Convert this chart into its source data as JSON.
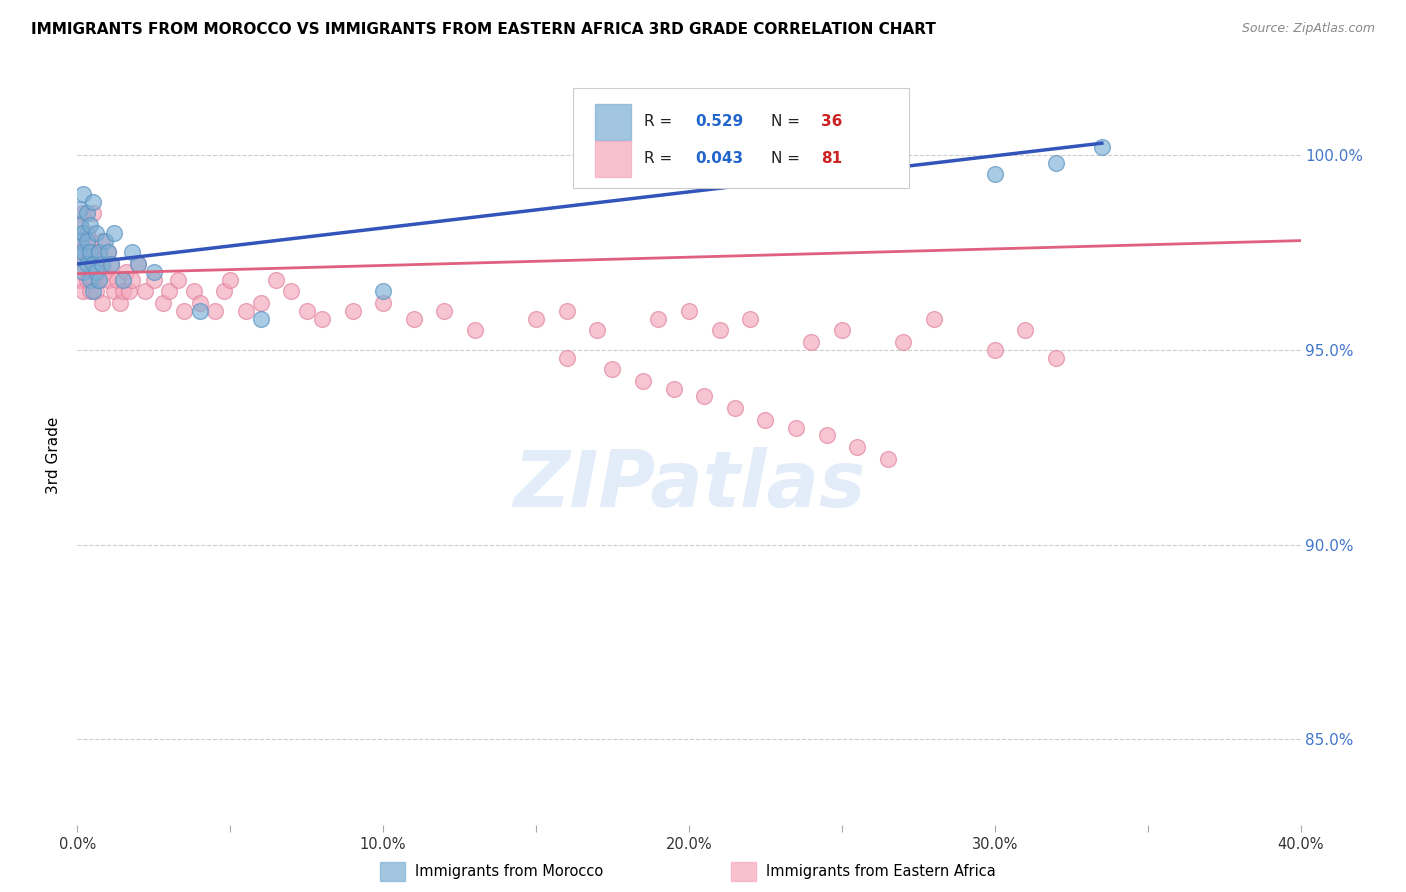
{
  "title": "IMMIGRANTS FROM MOROCCO VS IMMIGRANTS FROM EASTERN AFRICA 3RD GRADE CORRELATION CHART",
  "source": "Source: ZipAtlas.com",
  "ylabel": "3rd Grade",
  "xlim": [
    0.0,
    0.4
  ],
  "ylim": [
    0.828,
    1.018
  ],
  "xtick_labels": [
    "0.0%",
    "",
    "10.0%",
    "",
    "20.0%",
    "",
    "30.0%",
    "",
    "40.0%"
  ],
  "xtick_values": [
    0.0,
    0.05,
    0.1,
    0.15,
    0.2,
    0.25,
    0.3,
    0.35,
    0.4
  ],
  "ytick_labels": [
    "85.0%",
    "90.0%",
    "95.0%",
    "100.0%"
  ],
  "ytick_values": [
    0.85,
    0.9,
    0.95,
    1.0
  ],
  "grid_color": "#cccccc",
  "watermark": "ZIPatlas",
  "blue_color": "#7bafd4",
  "pink_color": "#f4a7b9",
  "blue_line_color": "#3355bb",
  "pink_line_color": "#e06080",
  "blue_edge": "#5590c0",
  "pink_edge": "#e080a0",
  "morocco_x": [
    0.001,
    0.001,
    0.001,
    0.001,
    0.002,
    0.002,
    0.002,
    0.002,
    0.003,
    0.003,
    0.003,
    0.004,
    0.004,
    0.004,
    0.005,
    0.005,
    0.005,
    0.006,
    0.006,
    0.007,
    0.007,
    0.008,
    0.009,
    0.01,
    0.011,
    0.012,
    0.015,
    0.018,
    0.02,
    0.025,
    0.04,
    0.06,
    0.1,
    0.3,
    0.32,
    0.335
  ],
  "morocco_y": [
    0.974,
    0.978,
    0.982,
    0.986,
    0.97,
    0.975,
    0.98,
    0.99,
    0.972,
    0.978,
    0.985,
    0.968,
    0.975,
    0.982,
    0.965,
    0.972,
    0.988,
    0.97,
    0.98,
    0.968,
    0.975,
    0.972,
    0.978,
    0.975,
    0.972,
    0.98,
    0.968,
    0.975,
    0.972,
    0.97,
    0.96,
    0.958,
    0.965,
    0.995,
    0.998,
    1.002
  ],
  "africa_x": [
    0.001,
    0.001,
    0.001,
    0.002,
    0.002,
    0.002,
    0.002,
    0.003,
    0.003,
    0.003,
    0.004,
    0.004,
    0.004,
    0.005,
    0.005,
    0.005,
    0.006,
    0.006,
    0.007,
    0.007,
    0.008,
    0.008,
    0.009,
    0.01,
    0.01,
    0.011,
    0.012,
    0.013,
    0.014,
    0.015,
    0.016,
    0.017,
    0.018,
    0.02,
    0.022,
    0.025,
    0.028,
    0.03,
    0.033,
    0.035,
    0.038,
    0.04,
    0.045,
    0.048,
    0.05,
    0.055,
    0.06,
    0.065,
    0.07,
    0.075,
    0.08,
    0.09,
    0.1,
    0.11,
    0.12,
    0.13,
    0.15,
    0.16,
    0.17,
    0.19,
    0.2,
    0.21,
    0.22,
    0.24,
    0.25,
    0.27,
    0.28,
    0.3,
    0.31,
    0.32,
    0.16,
    0.175,
    0.185,
    0.195,
    0.205,
    0.215,
    0.225,
    0.235,
    0.245,
    0.255,
    0.265
  ],
  "africa_y": [
    0.982,
    0.975,
    0.968,
    0.985,
    0.978,
    0.972,
    0.965,
    0.98,
    0.975,
    0.968,
    0.978,
    0.972,
    0.965,
    0.975,
    0.968,
    0.985,
    0.972,
    0.965,
    0.975,
    0.968,
    0.978,
    0.962,
    0.97,
    0.975,
    0.968,
    0.972,
    0.965,
    0.968,
    0.962,
    0.965,
    0.97,
    0.965,
    0.968,
    0.972,
    0.965,
    0.968,
    0.962,
    0.965,
    0.968,
    0.96,
    0.965,
    0.962,
    0.96,
    0.965,
    0.968,
    0.96,
    0.962,
    0.968,
    0.965,
    0.96,
    0.958,
    0.96,
    0.962,
    0.958,
    0.96,
    0.955,
    0.958,
    0.96,
    0.955,
    0.958,
    0.96,
    0.955,
    0.958,
    0.952,
    0.955,
    0.952,
    0.958,
    0.95,
    0.955,
    0.948,
    0.948,
    0.945,
    0.942,
    0.94,
    0.938,
    0.935,
    0.932,
    0.93,
    0.928,
    0.925,
    0.922
  ]
}
